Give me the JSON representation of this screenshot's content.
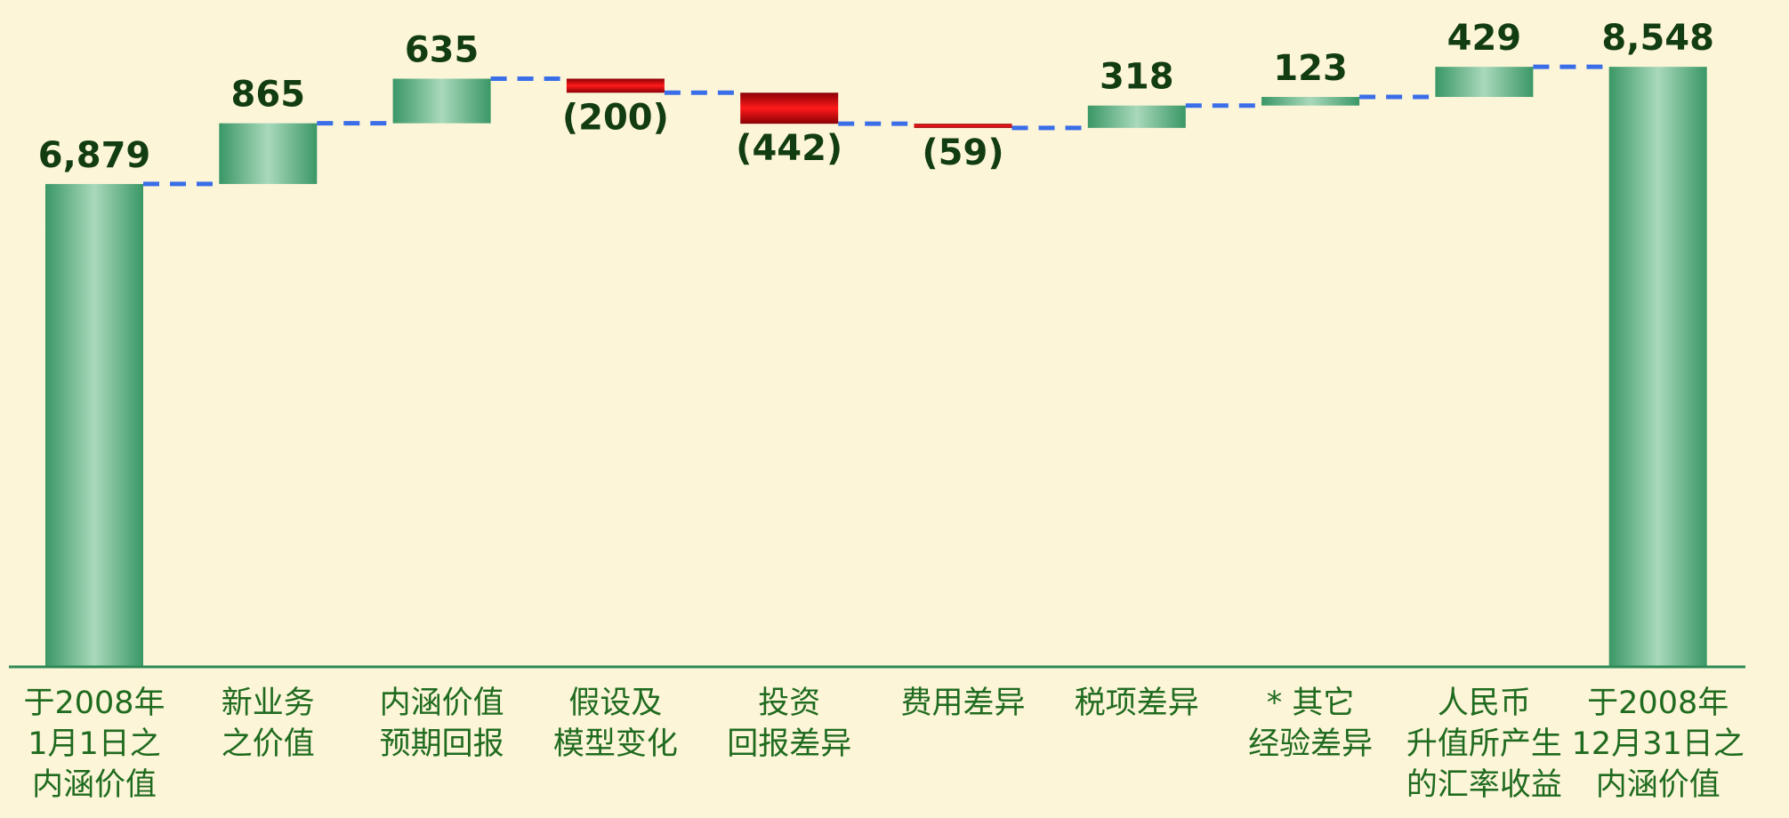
{
  "chart_data": {
    "type": "waterfall",
    "categories": [
      [
        "于2008年",
        "1月1日之",
        "内涵价值"
      ],
      [
        "新业务",
        "之价值"
      ],
      [
        "内涵价值",
        "预期回报"
      ],
      [
        "假设及",
        "模型变化"
      ],
      [
        "投资",
        "回报差异"
      ],
      [
        "费用差异"
      ],
      [
        "税项差异"
      ],
      [
        "* 其它",
        "经验差异"
      ],
      [
        "人民币",
        "升值所产生",
        "的汇率收益"
      ],
      [
        "于2008年",
        "12月31日之",
        "内涵价值"
      ]
    ],
    "values": [
      6879,
      865,
      635,
      -200,
      -442,
      -59,
      318,
      123,
      429,
      8548
    ],
    "value_labels": [
      "6,879",
      "865",
      "635",
      "(200)",
      "(442)",
      "(59)",
      "318",
      "123",
      "429",
      "8,548"
    ],
    "measure": [
      "absolute",
      "relative",
      "relative",
      "relative",
      "relative",
      "relative",
      "relative",
      "relative",
      "relative",
      "total"
    ],
    "colors": {
      "increase": "#3f9e6e",
      "decrease": "#d8000a",
      "total": "#3f9e6e",
      "connector": "#3a6ee8"
    },
    "ylim": [
      0,
      9500
    ]
  }
}
